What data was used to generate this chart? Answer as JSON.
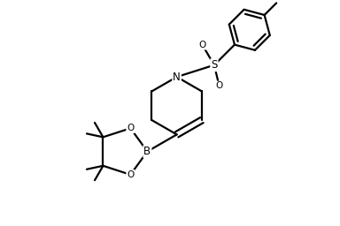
{
  "bg_color": "#ffffff",
  "line_color": "#000000",
  "line_width": 1.6,
  "fig_width": 3.84,
  "fig_height": 2.56,
  "dpi": 100,
  "xlim": [
    0,
    10
  ],
  "ylim": [
    0,
    6.67
  ],
  "font_size_atom": 8.5,
  "font_size_small": 7.5
}
